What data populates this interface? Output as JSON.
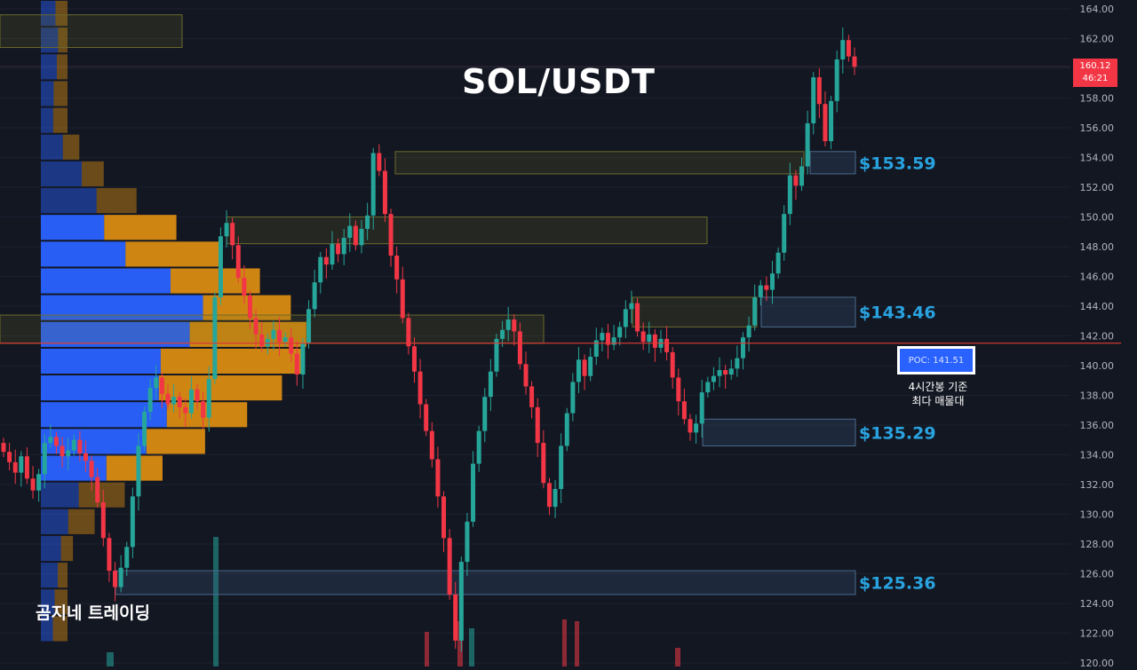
{
  "header": {
    "pair_title": "SOL/USDT"
  },
  "brand": {
    "watermark": "곰지네 트레이딩"
  },
  "poc": {
    "box_label": "POC: 141.51",
    "note_line1": "4시간봉 기준",
    "note_line2": "최다 매물대",
    "value": 141.51
  },
  "current_price": {
    "price_label": "160.12",
    "countdown": "46:21",
    "color": "#f23645"
  },
  "colors": {
    "background": "#131722",
    "up_candle": "#26a69a",
    "down_candle": "#f23645",
    "zone_label": "#29a3e0",
    "volume_profile_buy": "#2962ff",
    "volume_profile_sell": "#d98b12",
    "poc_line": "#e53935"
  },
  "chart_data": {
    "type": "candlestick",
    "title": "SOL/USDT",
    "yaxis_side": "right",
    "ylim": [
      120,
      164
    ],
    "yticks": [
      "164.00",
      "162.00",
      "160.00",
      "158.00",
      "156.00",
      "154.00",
      "152.00",
      "150.00",
      "148.00",
      "146.00",
      "144.00",
      "142.00",
      "140.00",
      "138.00",
      "136.00",
      "134.00",
      "132.00",
      "130.00",
      "128.00",
      "126.00",
      "124.00",
      "122.00",
      "120.00"
    ],
    "zones": [
      {
        "label": "$153.59",
        "low": 152.9,
        "high": 154.4,
        "kind": "resistance"
      },
      {
        "label": "$143.46",
        "low": 142.6,
        "high": 144.6,
        "kind": "support"
      },
      {
        "label": "$135.29",
        "low": 134.6,
        "high": 136.4,
        "kind": "support"
      },
      {
        "label": "$125.36",
        "low": 124.6,
        "high": 126.2,
        "kind": "support"
      }
    ],
    "candles_close": [
      134.2,
      133.5,
      132.8,
      133.9,
      132.4,
      131.6,
      132.7,
      134.8,
      135.2,
      134.6,
      133.9,
      134.3,
      135.0,
      134.1,
      133.6,
      132.5,
      130.8,
      128.4,
      126.2,
      125.1,
      126.4,
      127.8,
      131.2,
      134.6,
      136.9,
      138.5,
      139.2,
      138.1,
      137.4,
      137.9,
      137.2,
      136.8,
      138.4,
      137.6,
      136.5,
      139.1,
      144.6,
      148.7,
      149.6,
      148.1,
      145.9,
      144.7,
      143.2,
      142.1,
      141.3,
      141.8,
      142.4,
      141.6,
      141.9,
      140.8,
      139.4,
      141.5,
      143.8,
      145.6,
      147.3,
      146.8,
      148.2,
      147.5,
      148.6,
      149.4,
      148.1,
      149.2,
      150.1,
      154.3,
      153.1,
      150.2,
      147.4,
      145.8,
      143.2,
      141.3,
      139.6,
      137.4,
      135.6,
      133.7,
      131.2,
      128.4,
      124.6,
      121.5,
      126.8,
      129.5,
      133.4,
      135.6,
      137.9,
      139.6,
      141.8,
      142.4,
      143.1,
      142.3,
      140.1,
      138.6,
      137.2,
      134.8,
      132.1,
      130.5,
      131.7,
      134.6,
      136.8,
      138.9,
      140.4,
      139.3,
      140.6,
      141.7,
      142.2,
      141.4,
      141.9,
      142.6,
      143.8,
      144.2,
      142.3,
      141.6,
      142.1,
      141.2,
      141.8,
      140.9,
      139.2,
      137.6,
      136.4,
      135.5,
      136.1,
      138.2,
      138.9,
      139.3,
      139.7,
      139.4,
      139.8,
      140.5,
      141.9,
      142.7,
      144.6,
      145.4,
      145.1,
      146.2,
      147.6,
      150.2,
      152.8,
      152.1,
      153.4,
      156.3,
      159.4,
      157.6,
      155.1,
      157.8,
      160.6,
      161.9,
      160.8,
      160.1
    ]
  }
}
